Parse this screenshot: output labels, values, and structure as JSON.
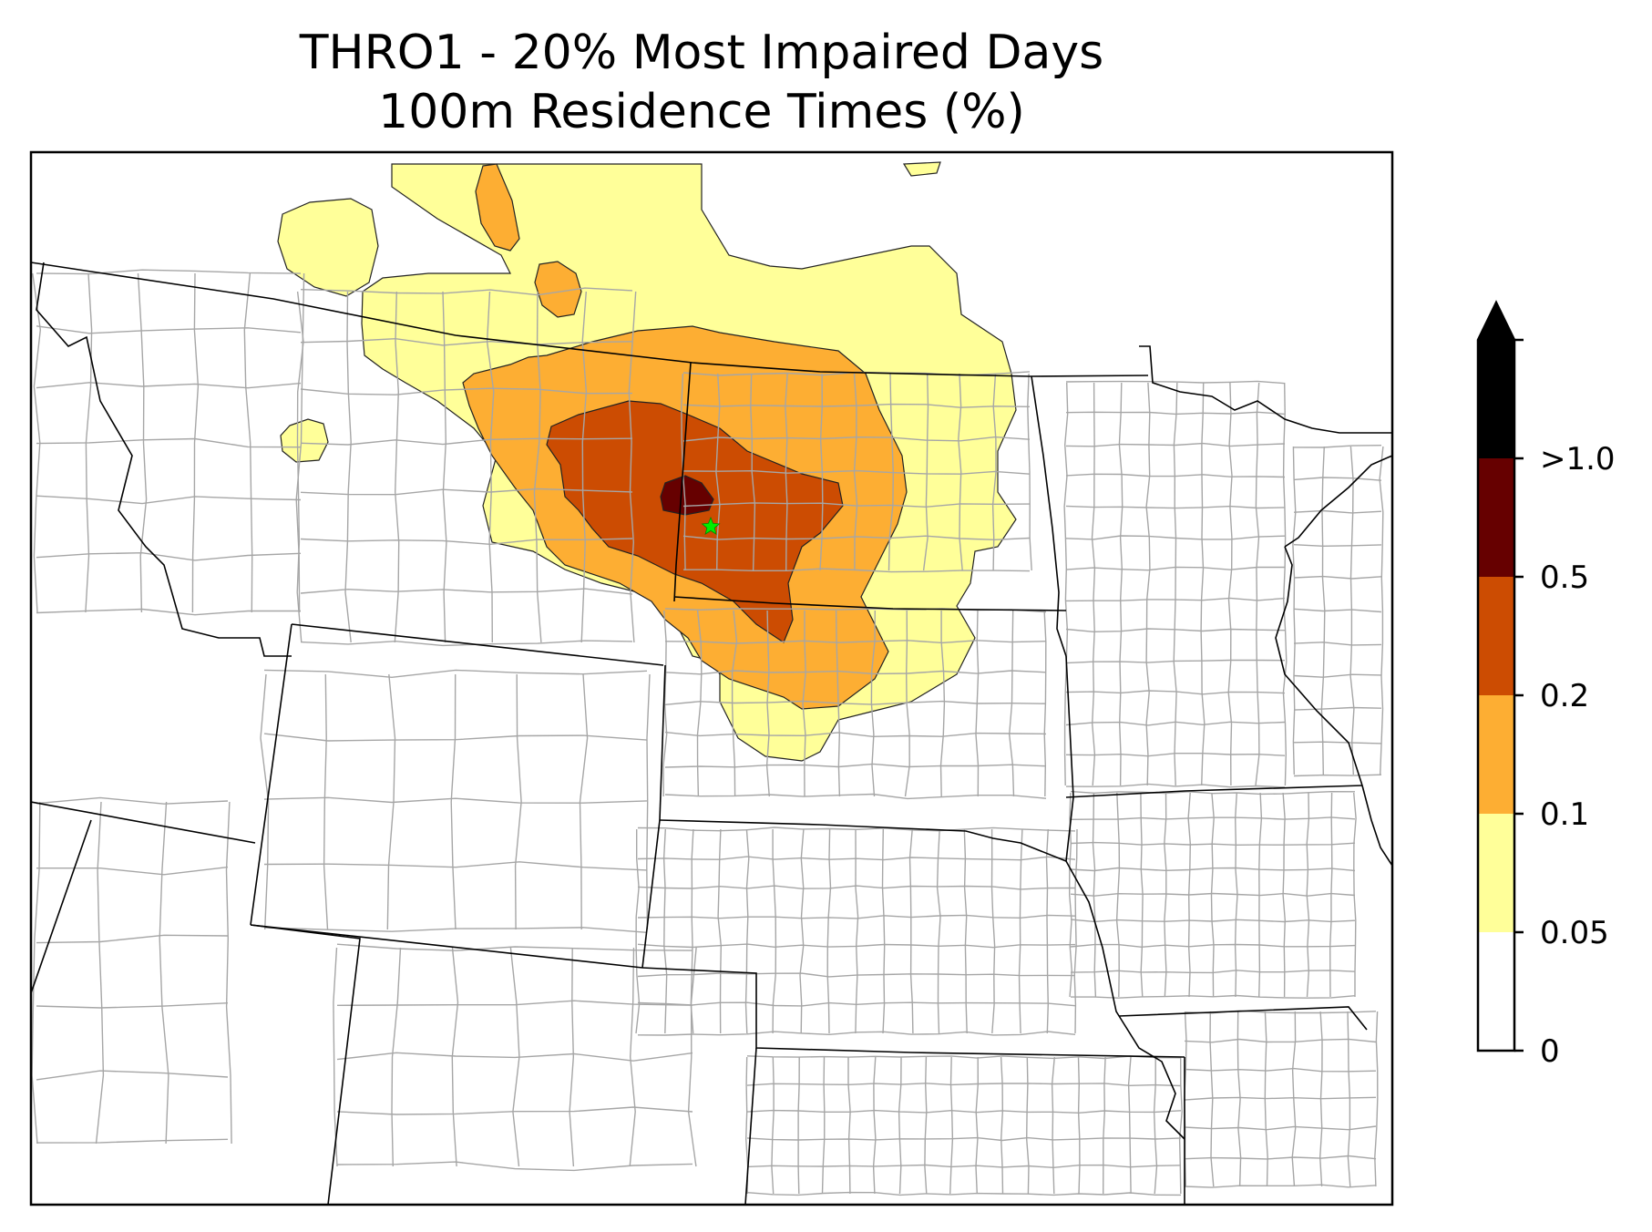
{
  "title": {
    "line1": "THRO1 - 20% Most Impaired Days",
    "line2": "100m Residence Times (%)"
  },
  "colors": {
    "level_0_005": "#ffffff",
    "level_005_01": "#ffff99",
    "level_01_02": "#fdae33",
    "level_02_05": "#cc4c02",
    "level_05_10": "#660000",
    "level_gt_10": "#000000",
    "state_border": "#000000",
    "county_border": "#a6a6a6",
    "receptor_marker": "#00ee00"
  },
  "colorbar": {
    "labels": [
      "0",
      "0.05",
      "0.1",
      "0.2",
      "0.5",
      ">1.0"
    ],
    "extend": "max"
  },
  "icons": {
    "receptor": "star-icon",
    "colorbar_extend": "triangle-up-icon"
  }
}
